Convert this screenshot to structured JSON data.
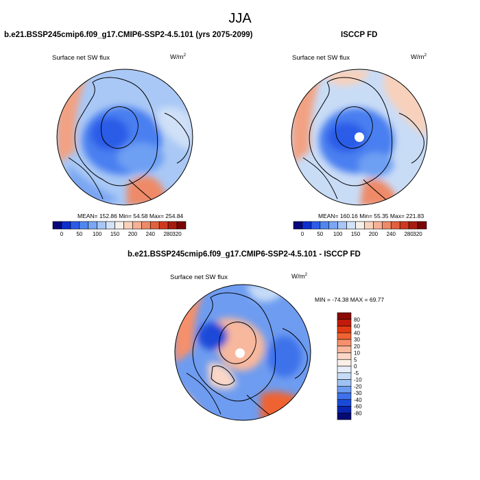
{
  "season": "JJA",
  "panels": {
    "model": {
      "title": "b.e21.BSSP245cmip6.f09_g17.CMIP6-SSP2-4.5.101 (yrs 2075-2099)",
      "variable": "Surface net SW flux",
      "units_base": "W/m",
      "units_exp": "2",
      "stats": "MEAN= 152.86  Min=  54.58  Max= 254.84",
      "mean": 152.86,
      "min": 54.58,
      "max": 254.84
    },
    "obs": {
      "title": "ISCCP FD",
      "variable": "Surface net SW flux",
      "units_base": "W/m",
      "units_exp": "2",
      "stats": "MEAN= 160.16  Min=  55.35  Max= 221.83",
      "mean": 160.16,
      "min": 55.35,
      "max": 221.83
    },
    "diff": {
      "title": "b.e21.BSSP245cmip6.f09_g17.CMIP6-SSP2-4.5.101 - ISCCP FD",
      "variable": "Surface net SW flux",
      "units_base": "W/m",
      "units_exp": "2",
      "stats": "MIN = -74.38 MAX =  69.77",
      "min": -74.38,
      "max": 69.77
    }
  },
  "colorbar_main": {
    "labels": [
      "0",
      "50",
      "100",
      "150",
      "200",
      "240",
      "280",
      "320"
    ],
    "colors": [
      "#08087a",
      "#0c2fd0",
      "#2c5be8",
      "#4f86f0",
      "#7aa6f3",
      "#a8c6f5",
      "#d2e2f7",
      "#f4efe9",
      "#f8d1bc",
      "#f5b095",
      "#ee8a68",
      "#e2603d",
      "#cf3a1f",
      "#a71c0e",
      "#7a0505"
    ]
  },
  "colorbar_diff": {
    "labels": [
      "80",
      "60",
      "40",
      "30",
      "20",
      "10",
      "5",
      "0",
      "-5",
      "-10",
      "-20",
      "-30",
      "-40",
      "-60",
      "-80"
    ],
    "colors": [
      "#8b0a05",
      "#c21b0b",
      "#e23a15",
      "#ef6333",
      "#f6906b",
      "#f8b89d",
      "#fad7c6",
      "#fbf0e8",
      "#e6eef9",
      "#c6dbf6",
      "#9ec2f3",
      "#6e9cf0",
      "#3e72ea",
      "#1a4ad8",
      "#0a25b0",
      "#060b74"
    ]
  },
  "colors": {
    "land_outline": "#000000",
    "ocean_low": "#2f63e6",
    "mid": "#a9c8f5",
    "high": "#ef8b66"
  }
}
